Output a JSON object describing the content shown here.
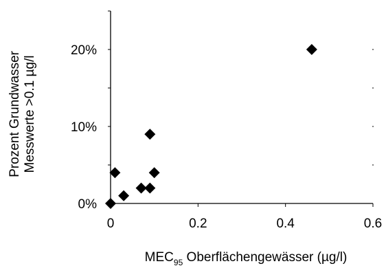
{
  "chart_data": {
    "type": "scatter",
    "title": "",
    "xlabel_main": "MEC",
    "xlabel_sub": "95",
    "xlabel_rest": " Oberflächengewässer (µg/l)",
    "ylabel_line1": "Prozent Grundwasser",
    "ylabel_line2": "Messwerte >0.1 µg/l",
    "xlim": [
      0,
      0.6
    ],
    "ylim": [
      0,
      25
    ],
    "x_ticks": [
      0,
      0.2,
      0.4,
      0.6
    ],
    "x_tick_labels": [
      "0",
      "0.2",
      "0.4",
      "0.6"
    ],
    "y_ticks": [
      0,
      10,
      20
    ],
    "y_tick_labels": [
      "0%",
      "10%",
      "20%"
    ],
    "marker": "diamond",
    "marker_color": "#000000",
    "grid": false,
    "series": [
      {
        "points": [
          {
            "x": 0.0,
            "y": 0
          },
          {
            "x": 0.01,
            "y": 4
          },
          {
            "x": 0.03,
            "y": 1
          },
          {
            "x": 0.07,
            "y": 2
          },
          {
            "x": 0.09,
            "y": 2
          },
          {
            "x": 0.09,
            "y": 9
          },
          {
            "x": 0.1,
            "y": 4
          },
          {
            "x": 0.46,
            "y": 20
          }
        ]
      }
    ]
  }
}
